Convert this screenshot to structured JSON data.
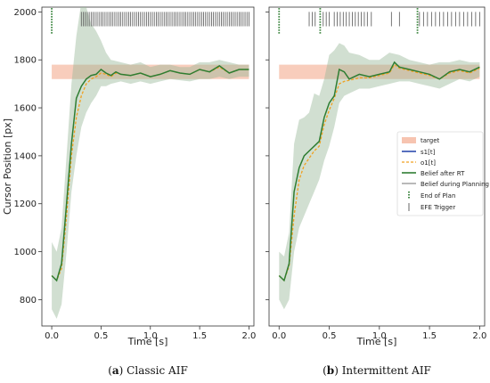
{
  "chart_data": [
    {
      "type": "line",
      "caption_letter": "a",
      "caption_text": " Classic AIF",
      "xlabel": "Time [s]",
      "ylabel": "Cursor Position [px]",
      "xlim": [
        -0.1,
        2.05
      ],
      "ylim": [
        690,
        2020
      ],
      "x_ticks": [
        0.0,
        0.5,
        1.0,
        1.5,
        2.0
      ],
      "x_tick_labels": [
        "0.0",
        "0.5",
        "1.0",
        "1.5",
        "2.0"
      ],
      "y_ticks": [
        800,
        1000,
        1200,
        1400,
        1600,
        1800,
        2000
      ],
      "y_tick_labels": [
        "800",
        "1000",
        "1200",
        "1400",
        "1600",
        "1800",
        "2000"
      ],
      "target_band": [
        1720,
        1780
      ],
      "series": {
        "belief_mean": {
          "x": [
            0.0,
            0.05,
            0.1,
            0.15,
            0.2,
            0.25,
            0.3,
            0.35,
            0.4,
            0.45,
            0.5,
            0.55,
            0.6,
            0.65,
            0.7,
            0.8,
            0.9,
            1.0,
            1.1,
            1.2,
            1.3,
            1.4,
            1.5,
            1.6,
            1.7,
            1.8,
            1.9,
            2.0
          ],
          "y": [
            900,
            880,
            950,
            1200,
            1450,
            1640,
            1690,
            1720,
            1735,
            1740,
            1760,
            1745,
            1735,
            1750,
            1740,
            1735,
            1745,
            1730,
            1740,
            1755,
            1745,
            1740,
            1760,
            1750,
            1775,
            1745,
            1760,
            1760
          ]
        },
        "observation": {
          "x": [
            0.0,
            0.05,
            0.1,
            0.15,
            0.2,
            0.25,
            0.3,
            0.35,
            0.4,
            0.45,
            0.5,
            0.55,
            0.6,
            0.65,
            0.7,
            0.8,
            0.9,
            1.0,
            1.1,
            1.2,
            1.3,
            1.4,
            1.5,
            1.6,
            1.7,
            1.8,
            1.9,
            2.0
          ],
          "y": [
            900,
            880,
            930,
            1150,
            1400,
            1560,
            1650,
            1700,
            1720,
            1730,
            1745,
            1740,
            1730,
            1745,
            1740,
            1735,
            1745,
            1730,
            1740,
            1755,
            1745,
            1740,
            1760,
            1750,
            1770,
            1745,
            1760,
            1760
          ]
        },
        "band_upper": {
          "x": [
            0.0,
            0.05,
            0.1,
            0.15,
            0.2,
            0.25,
            0.3,
            0.35,
            0.4,
            0.45,
            0.5,
            0.55,
            0.6,
            0.7,
            0.8,
            0.9,
            1.0,
            1.1,
            1.2,
            1.3,
            1.4,
            1.5,
            1.6,
            1.7,
            1.8,
            1.9,
            2.0
          ],
          "y": [
            1040,
            1000,
            1100,
            1400,
            1700,
            1900,
            2040,
            2020,
            1950,
            1920,
            1880,
            1830,
            1800,
            1790,
            1780,
            1790,
            1770,
            1780,
            1780,
            1770,
            1770,
            1790,
            1790,
            1800,
            1790,
            1780,
            1780
          ]
        },
        "band_lower": {
          "x": [
            0.0,
            0.05,
            0.1,
            0.15,
            0.2,
            0.25,
            0.3,
            0.35,
            0.4,
            0.45,
            0.5,
            0.55,
            0.6,
            0.7,
            0.8,
            0.9,
            1.0,
            1.1,
            1.2,
            1.3,
            1.4,
            1.5,
            1.6,
            1.7,
            1.8,
            1.9,
            2.0
          ],
          "y": [
            760,
            720,
            780,
            1000,
            1250,
            1400,
            1520,
            1580,
            1620,
            1650,
            1690,
            1690,
            1700,
            1710,
            1700,
            1710,
            1700,
            1710,
            1720,
            1715,
            1710,
            1720,
            1720,
            1730,
            1720,
            1730,
            1730
          ]
        }
      },
      "end_of_plan_times": [
        0.0
      ],
      "efe_trigger_times": [
        0.3,
        0.32,
        0.34,
        0.36,
        0.38,
        0.4,
        0.42,
        0.44,
        0.46,
        0.48,
        0.5,
        0.52,
        0.54,
        0.56,
        0.58,
        0.6,
        0.62,
        0.64,
        0.66,
        0.68,
        0.7,
        0.72,
        0.74,
        0.76,
        0.78,
        0.8,
        0.82,
        0.84,
        0.86,
        0.88,
        0.9,
        0.92,
        0.94,
        0.96,
        0.98,
        1.0,
        1.02,
        1.04,
        1.06,
        1.08,
        1.1,
        1.12,
        1.14,
        1.16,
        1.18,
        1.2,
        1.22,
        1.24,
        1.26,
        1.28,
        1.3,
        1.32,
        1.34,
        1.36,
        1.38,
        1.4,
        1.42,
        1.44,
        1.46,
        1.48,
        1.5,
        1.52,
        1.54,
        1.56,
        1.58,
        1.6,
        1.62,
        1.64,
        1.66,
        1.68,
        1.7,
        1.72,
        1.74,
        1.76,
        1.78,
        1.8,
        1.82,
        1.84,
        1.86,
        1.88,
        1.9,
        1.92,
        1.94,
        1.96,
        1.98,
        2.0
      ],
      "marker_y": [
        1940,
        2000
      ]
    },
    {
      "type": "line",
      "caption_letter": "b",
      "caption_text": " Intermittent AIF",
      "xlabel": "Time [s]",
      "ylabel": "",
      "xlim": [
        -0.1,
        2.05
      ],
      "ylim": [
        690,
        2020
      ],
      "x_ticks": [
        0.0,
        0.5,
        1.0,
        1.5,
        2.0
      ],
      "x_tick_labels": [
        "0.0",
        "0.5",
        "1.0",
        "1.5",
        "2.0"
      ],
      "y_ticks": [
        800,
        1000,
        1200,
        1400,
        1600,
        1800,
        2000
      ],
      "target_band": [
        1720,
        1780
      ],
      "series": {
        "belief_mean": {
          "x": [
            0.0,
            0.05,
            0.1,
            0.15,
            0.2,
            0.25,
            0.3,
            0.35,
            0.4,
            0.45,
            0.5,
            0.55,
            0.6,
            0.65,
            0.7,
            0.75,
            0.8,
            0.9,
            1.0,
            1.1,
            1.15,
            1.2,
            1.3,
            1.4,
            1.5,
            1.6,
            1.7,
            1.8,
            1.9,
            2.0
          ],
          "y": [
            900,
            880,
            950,
            1250,
            1350,
            1400,
            1420,
            1440,
            1460,
            1560,
            1620,
            1650,
            1760,
            1750,
            1720,
            1730,
            1740,
            1730,
            1740,
            1750,
            1790,
            1770,
            1760,
            1750,
            1740,
            1720,
            1750,
            1760,
            1750,
            1770
          ]
        },
        "observation": {
          "x": [
            0.0,
            0.05,
            0.1,
            0.15,
            0.2,
            0.25,
            0.3,
            0.35,
            0.4,
            0.45,
            0.5,
            0.55,
            0.6,
            0.65,
            0.7,
            0.75,
            0.8,
            0.9,
            1.0,
            1.1,
            1.15,
            1.2,
            1.3,
            1.4,
            1.5,
            1.6,
            1.7,
            1.8,
            1.9,
            2.0
          ],
          "y": [
            900,
            880,
            940,
            1150,
            1300,
            1360,
            1390,
            1420,
            1440,
            1530,
            1590,
            1640,
            1700,
            1710,
            1715,
            1720,
            1725,
            1725,
            1735,
            1745,
            1780,
            1765,
            1755,
            1745,
            1735,
            1720,
            1745,
            1755,
            1745,
            1765
          ]
        },
        "band_upper": {
          "x": [
            0.0,
            0.05,
            0.1,
            0.15,
            0.2,
            0.25,
            0.3,
            0.35,
            0.4,
            0.45,
            0.5,
            0.55,
            0.6,
            0.65,
            0.7,
            0.8,
            0.9,
            1.0,
            1.1,
            1.2,
            1.3,
            1.4,
            1.5,
            1.6,
            1.7,
            1.8,
            1.9,
            2.0
          ],
          "y": [
            1000,
            980,
            1080,
            1450,
            1550,
            1560,
            1580,
            1660,
            1650,
            1720,
            1820,
            1840,
            1870,
            1860,
            1830,
            1820,
            1800,
            1800,
            1830,
            1820,
            1800,
            1790,
            1780,
            1790,
            1790,
            1800,
            1790,
            1790
          ]
        },
        "band_lower": {
          "x": [
            0.0,
            0.05,
            0.1,
            0.15,
            0.2,
            0.25,
            0.3,
            0.35,
            0.4,
            0.45,
            0.5,
            0.55,
            0.6,
            0.65,
            0.7,
            0.8,
            0.9,
            1.0,
            1.1,
            1.2,
            1.3,
            1.4,
            1.5,
            1.6,
            1.7,
            1.8,
            1.9,
            2.0
          ],
          "y": [
            800,
            760,
            800,
            1000,
            1100,
            1150,
            1200,
            1250,
            1300,
            1380,
            1440,
            1520,
            1620,
            1650,
            1660,
            1680,
            1680,
            1690,
            1700,
            1710,
            1710,
            1700,
            1690,
            1680,
            1700,
            1720,
            1710,
            1730
          ]
        }
      },
      "end_of_plan_times": [
        0.0,
        0.41,
        1.38
      ],
      "efe_trigger_times": [
        0.3,
        0.33,
        0.36,
        0.44,
        0.47,
        0.5,
        0.55,
        0.58,
        0.61,
        0.64,
        0.67,
        0.7,
        0.73,
        0.76,
        0.79,
        0.82,
        0.85,
        0.88,
        0.92,
        1.12,
        1.2,
        1.4,
        1.44,
        1.48,
        1.52,
        1.56,
        1.6,
        1.64,
        1.68,
        1.72,
        1.76,
        1.8,
        1.84,
        1.88,
        1.92,
        1.96,
        2.0
      ],
      "marker_y": [
        1940,
        2000
      ],
      "legend": [
        "target",
        "s1[t]",
        "o1[t]",
        "Belief after RT",
        "Belief during Planning",
        "End of Plan",
        "EFE Trigger"
      ]
    }
  ],
  "colors": {
    "target": "#f7c4b0",
    "belief_band": "#9ab89a",
    "belief_after_rt": "#2e7d32",
    "s1": "#1f3fa8",
    "o1": "#f0a020",
    "belief_planning": "#8a8a8a",
    "end_of_plan": "#2e7d32",
    "efe_trigger": "#555555"
  }
}
